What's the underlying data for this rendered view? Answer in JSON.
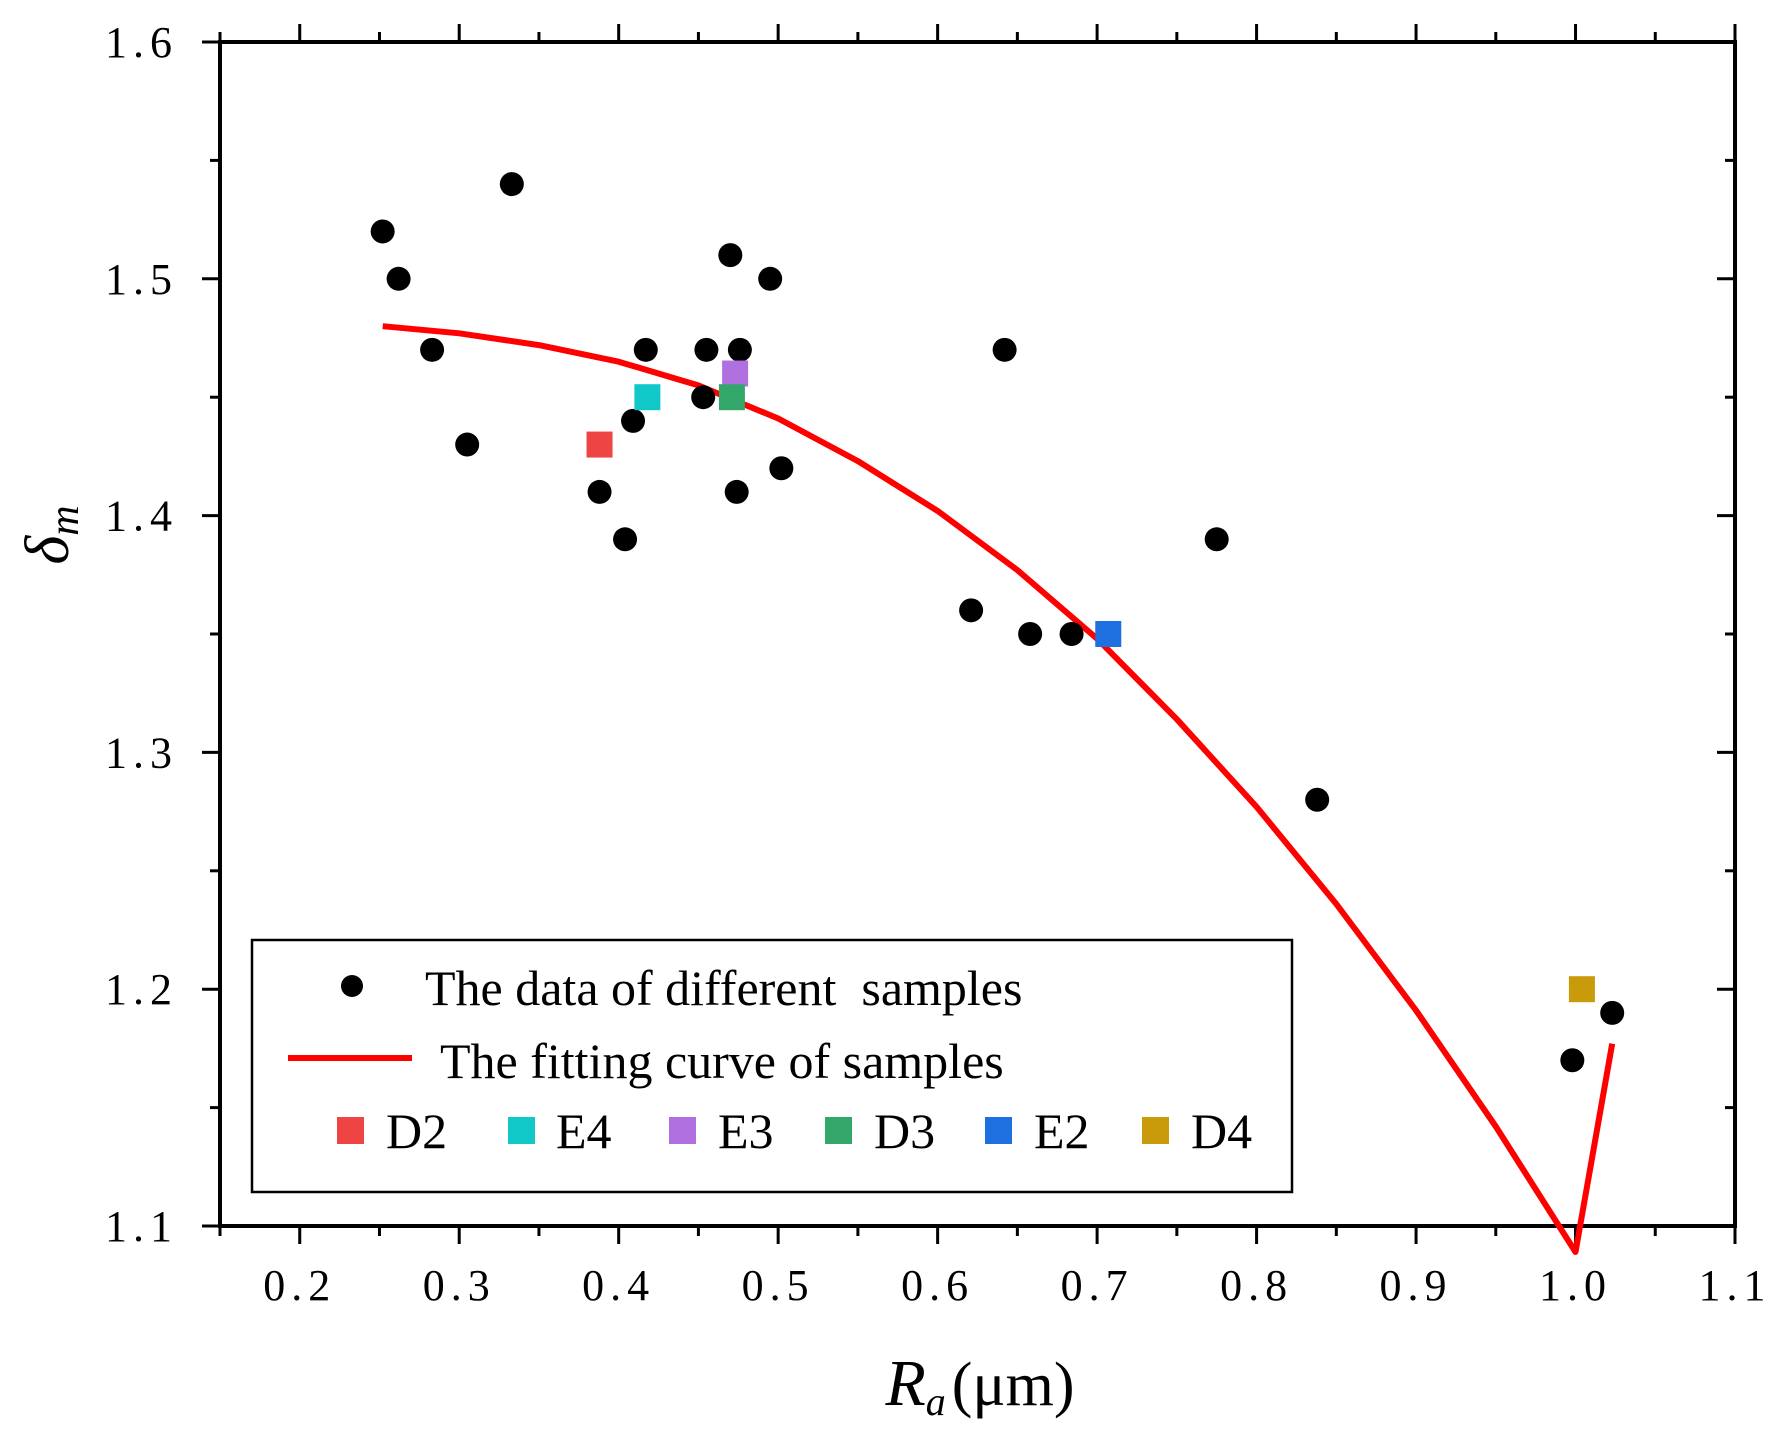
{
  "chart_data": {
    "type": "scatter",
    "xlabel": {
      "symbol": "R",
      "subscript": "a",
      "unit": "(μm)"
    },
    "ylabel": {
      "symbol": "δ",
      "subscript": "m"
    },
    "xlim": [
      0.15,
      1.1
    ],
    "ylim": [
      1.1,
      1.6
    ],
    "x_ticks": [
      "0.2",
      "0.3",
      "0.4",
      "0.5",
      "0.6",
      "0.7",
      "0.8",
      "0.9",
      "1.0",
      "1.1"
    ],
    "y_ticks": [
      "1.1",
      "1.2",
      "1.3",
      "1.4",
      "1.5",
      "1.6"
    ],
    "x_tick_values": [
      0.2,
      0.3,
      0.4,
      0.5,
      0.6,
      0.7,
      0.8,
      0.9,
      1.0,
      1.1
    ],
    "y_tick_values": [
      1.1,
      1.2,
      1.3,
      1.4,
      1.5,
      1.6
    ],
    "grid": false,
    "legend_position": "bottom-left",
    "series": [
      {
        "name": "The data of different  samples",
        "marker": "circle",
        "color": "#000000",
        "points": [
          [
            0.252,
            1.52
          ],
          [
            0.262,
            1.5
          ],
          [
            0.283,
            1.47
          ],
          [
            0.305,
            1.43
          ],
          [
            0.333,
            1.54
          ],
          [
            0.388,
            1.41
          ],
          [
            0.404,
            1.39
          ],
          [
            0.409,
            1.44
          ],
          [
            0.417,
            1.47
          ],
          [
            0.453,
            1.45
          ],
          [
            0.455,
            1.47
          ],
          [
            0.47,
            1.51
          ],
          [
            0.474,
            1.41
          ],
          [
            0.476,
            1.47
          ],
          [
            0.495,
            1.5
          ],
          [
            0.502,
            1.42
          ],
          [
            0.621,
            1.36
          ],
          [
            0.642,
            1.47
          ],
          [
            0.658,
            1.35
          ],
          [
            0.684,
            1.35
          ],
          [
            0.775,
            1.39
          ],
          [
            0.838,
            1.28
          ],
          [
            0.998,
            1.17
          ],
          [
            1.023,
            1.19
          ]
        ]
      },
      {
        "name": "The fitting curve of samples",
        "marker": "line",
        "color": "#ff0000",
        "points": [
          [
            0.252,
            1.48
          ],
          [
            0.3,
            1.477
          ],
          [
            0.35,
            1.472
          ],
          [
            0.4,
            1.465
          ],
          [
            0.45,
            1.455
          ],
          [
            0.5,
            1.441
          ],
          [
            0.55,
            1.423
          ],
          [
            0.6,
            1.402
          ],
          [
            0.65,
            1.377
          ],
          [
            0.7,
            1.348
          ],
          [
            0.75,
            1.314
          ],
          [
            0.8,
            1.277
          ],
          [
            0.85,
            1.236
          ],
          [
            0.9,
            1.191
          ],
          [
            0.95,
            1.142
          ],
          [
            1.0,
            1.089
          ],
          [
            1.023,
            1.177
          ]
        ]
      }
    ],
    "highlighted_samples": [
      {
        "name": "D2",
        "color": "#ee4444",
        "x": 0.388,
        "y": 1.43
      },
      {
        "name": "E4",
        "color": "#11c8c8",
        "x": 0.418,
        "y": 1.45
      },
      {
        "name": "E3",
        "color": "#b070e0",
        "x": 0.473,
        "y": 1.46
      },
      {
        "name": "D3",
        "color": "#33a66a",
        "x": 0.471,
        "y": 1.45
      },
      {
        "name": "E2",
        "color": "#1e6fe0",
        "x": 0.707,
        "y": 1.35
      },
      {
        "name": "D4",
        "color": "#c99a0a",
        "x": 1.004,
        "y": 1.2
      }
    ]
  }
}
